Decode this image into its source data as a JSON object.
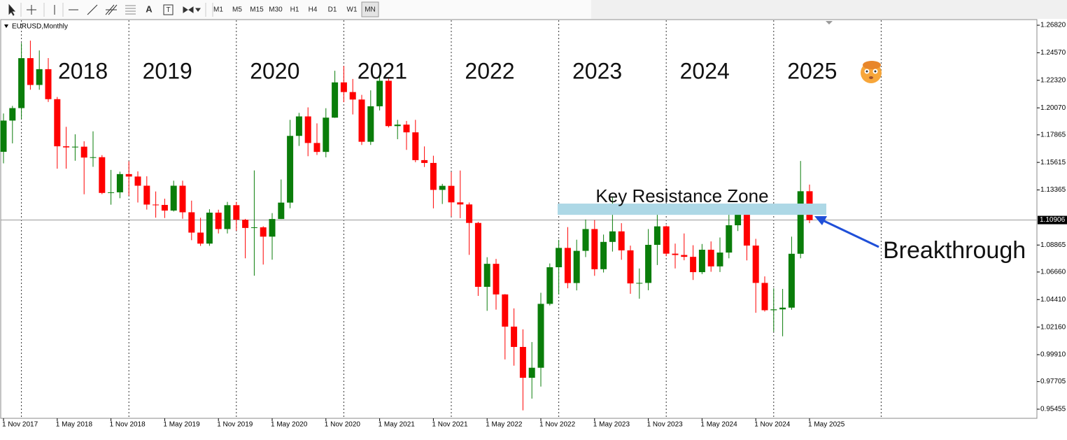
{
  "toolbar": {
    "text_tool": "A",
    "label_tool": "T",
    "timeframes": [
      "M1",
      "M5",
      "M15",
      "M30",
      "H1",
      "H4",
      "D1",
      "W1",
      "MN"
    ]
  },
  "chart_data": {
    "type": "candlestick",
    "symbol": "EURUSD,Monthly",
    "categories": [
      "1 Nov 2017",
      null,
      null,
      null,
      null,
      null,
      "1 May 2018",
      null,
      null,
      null,
      null,
      null,
      "1 Nov 2018",
      null,
      null,
      null,
      null,
      null,
      "1 May 2019",
      null,
      null,
      null,
      null,
      null,
      "1 Nov 2019",
      null,
      null,
      null,
      null,
      null,
      "1 May 2020",
      null,
      null,
      null,
      null,
      null,
      "1 Nov 2020",
      null,
      null,
      null,
      null,
      null,
      "1 May 2021",
      null,
      null,
      null,
      null,
      null,
      "1 Nov 2021",
      null,
      null,
      null,
      null,
      null,
      "1 May 2022",
      null,
      null,
      null,
      null,
      null,
      "1 Nov 2022",
      null,
      null,
      null,
      null,
      null,
      "1 May 2023",
      null,
      null,
      null,
      null,
      null,
      "1 Nov 2023",
      null,
      null,
      null,
      null,
      null,
      "1 May 2024",
      null,
      null,
      null,
      null,
      null,
      "1 Nov 2024",
      null,
      null,
      null,
      null,
      null,
      "1 May 2025"
    ],
    "open": [
      1.1648,
      1.1903,
      1.2005,
      1.2413,
      1.2194,
      1.2323,
      1.2078,
      1.1693,
      1.1684,
      1.169,
      1.1601,
      1.1604,
      1.1312,
      1.1317,
      1.1466,
      1.1446,
      1.1371,
      1.1217,
      1.1214,
      1.1168,
      1.1371,
      1.1154,
      1.0988,
      1.0898,
      1.1151,
      1.1017,
      1.1212,
      1.1093,
      1.1026,
      1.1031,
      1.0955,
      1.1099,
      1.1233,
      1.1778,
      1.1937,
      1.172,
      1.1647,
      1.1927,
      1.2215,
      1.2136,
      1.2075,
      1.173,
      1.202,
      1.2228,
      1.1858,
      1.187,
      1.1807,
      1.158,
      1.1557,
      1.1337,
      1.137,
      1.1235,
      1.1218,
      1.1067,
      1.0545,
      1.0733,
      1.0483,
      1.022,
      1.0054,
      0.9802,
      0.9884,
      1.0406,
      1.0705,
      1.0863,
      1.0576,
      1.0839,
      1.1017,
      1.0689,
      1.0912,
      1.0998,
      1.0843,
      1.0573,
      1.0577,
      1.0888,
      1.1039,
      1.0816,
      1.0805,
      1.079,
      1.0665,
      1.0848,
      1.0712,
      1.0825,
      1.1048,
      1.1135,
      1.0882,
      1.0577,
      1.0354,
      1.0361,
      1.0375,
      1.0815,
      1.1326
    ],
    "high": [
      1.1961,
      1.2023,
      1.2537,
      1.2556,
      1.2476,
      1.2414,
      1.2096,
      1.1852,
      1.1791,
      1.1734,
      1.1815,
      1.1621,
      1.15,
      1.1486,
      1.157,
      1.1488,
      1.1448,
      1.1324,
      1.1265,
      1.1412,
      1.1412,
      1.1249,
      1.1109,
      1.1179,
      1.1175,
      1.1239,
      1.1239,
      1.11,
      1.1496,
      1.104,
      1.1147,
      1.1422,
      1.1909,
      1.1966,
      1.2011,
      1.188,
      1.2004,
      1.231,
      1.2349,
      1.2243,
      1.2113,
      1.215,
      1.2266,
      1.2254,
      1.1909,
      1.19,
      1.1909,
      1.1692,
      1.1616,
      1.1386,
      1.1482,
      1.1495,
      1.1234,
      1.1076,
      1.0787,
      1.0773,
      1.0486,
      1.0369,
      1.0198,
      1.0094,
      1.0497,
      1.0736,
      1.0929,
      1.1033,
      1.093,
      1.1095,
      1.1091,
      1.0972,
      1.1276,
      1.1065,
      1.0882,
      1.0695,
      1.1017,
      1.114,
      1.1046,
      1.0898,
      1.0981,
      1.0885,
      1.0895,
      1.0916,
      1.0948,
      1.1202,
      1.1214,
      1.1145,
      1.0937,
      1.063,
      1.0533,
      1.0528,
      1.0955,
      1.1573,
      1.138
    ],
    "low": [
      1.1554,
      1.1717,
      1.1915,
      1.2155,
      1.2155,
      1.2055,
      1.151,
      1.151,
      1.1575,
      1.1301,
      1.1525,
      1.1302,
      1.1216,
      1.1269,
      1.1289,
      1.1234,
      1.1176,
      1.111,
      1.1107,
      1.116,
      1.1101,
      1.0926,
      1.0879,
      1.088,
      1.0981,
      1.0981,
      1.1003,
      1.0778,
      1.0636,
      1.0727,
      1.0767,
      1.1099,
      1.1187,
      1.1696,
      1.1612,
      1.1622,
      1.1603,
      1.1925,
      1.2053,
      1.1953,
      1.1704,
      1.1704,
      1.1986,
      1.1847,
      1.1751,
      1.1664,
      1.1563,
      1.1524,
      1.1186,
      1.1222,
      1.1121,
      1.1106,
      1.0806,
      1.0471,
      1.0349,
      1.0359,
      0.9952,
      0.9901,
      0.9536,
      0.9632,
      0.973,
      1.0393,
      1.0483,
      1.0533,
      1.0516,
      1.0788,
      1.0635,
      1.0662,
      1.0833,
      1.0766,
      1.0488,
      1.0448,
      1.0517,
      1.0723,
      1.0795,
      1.0695,
      1.0762,
      1.0601,
      1.0649,
      1.0668,
      1.0666,
      1.0778,
      1.1001,
      1.0761,
      1.0333,
      1.0343,
      1.0178,
      1.0141,
      1.0358,
      1.0778,
      1.1065
    ],
    "close": [
      1.1903,
      1.2005,
      1.2413,
      1.2194,
      1.2323,
      1.2078,
      1.1693,
      1.1684,
      1.169,
      1.1601,
      1.1604,
      1.1312,
      1.1317,
      1.1466,
      1.1446,
      1.1371,
      1.1217,
      1.1214,
      1.1168,
      1.1371,
      1.1154,
      1.0988,
      1.0898,
      1.1151,
      1.1017,
      1.1212,
      1.1093,
      1.1026,
      1.1031,
      1.0955,
      1.1099,
      1.1233,
      1.1778,
      1.1937,
      1.172,
      1.1647,
      1.1927,
      1.2215,
      1.2136,
      1.2075,
      1.173,
      1.202,
      1.2228,
      1.1858,
      1.187,
      1.1807,
      1.158,
      1.1557,
      1.1337,
      1.137,
      1.1235,
      1.1218,
      1.1067,
      1.0545,
      1.0733,
      1.0483,
      1.022,
      1.0054,
      0.9802,
      0.9884,
      1.0406,
      1.0705,
      1.0863,
      1.0576,
      1.0839,
      1.1017,
      1.0689,
      1.0912,
      1.0998,
      1.0843,
      1.0573,
      1.0577,
      1.0888,
      1.1039,
      1.0816,
      1.0805,
      1.079,
      1.0665,
      1.0848,
      1.0712,
      1.0825,
      1.1048,
      1.1135,
      1.0882,
      1.0577,
      1.0354,
      1.0361,
      1.0375,
      1.0815,
      1.1326,
      1.109
    ],
    "up_color": "#0a7d0a",
    "down_color": "#ff0000",
    "ylim": [
      0.9471,
      1.2728
    ],
    "yticks": [
      {
        "value": 1.2682,
        "label": "1.26820"
      },
      {
        "value": 1.2457,
        "label": "1.24570"
      },
      {
        "value": 1.2232,
        "label": "1.22320"
      },
      {
        "value": 1.2007,
        "label": "1.20070"
      },
      {
        "value": 1.17865,
        "label": "1.17865"
      },
      {
        "value": 1.15615,
        "label": "1.15615"
      },
      {
        "value": 1.13365,
        "label": "1.13365"
      },
      {
        "value": 1.08865,
        "label": "1.08865"
      },
      {
        "value": 1.0666,
        "label": "1.06660"
      },
      {
        "value": 1.0441,
        "label": "1.04410"
      },
      {
        "value": 1.0216,
        "label": "1.02160"
      },
      {
        "value": 0.9991,
        "label": "0.99910"
      },
      {
        "value": 0.97705,
        "label": "0.97705"
      },
      {
        "value": 0.95455,
        "label": "0.95455"
      }
    ],
    "current_price": {
      "value": 1.10906,
      "label": "1.10906"
    },
    "year_labels": [
      "2018",
      "2019",
      "2020",
      "2021",
      "2022",
      "2023",
      "2024",
      "2025"
    ],
    "zone": {
      "label": "Key Resistance Zone",
      "from": 1.1133,
      "to": 1.1225,
      "color": "#add8e6"
    },
    "annotation": "Breakthrough"
  }
}
